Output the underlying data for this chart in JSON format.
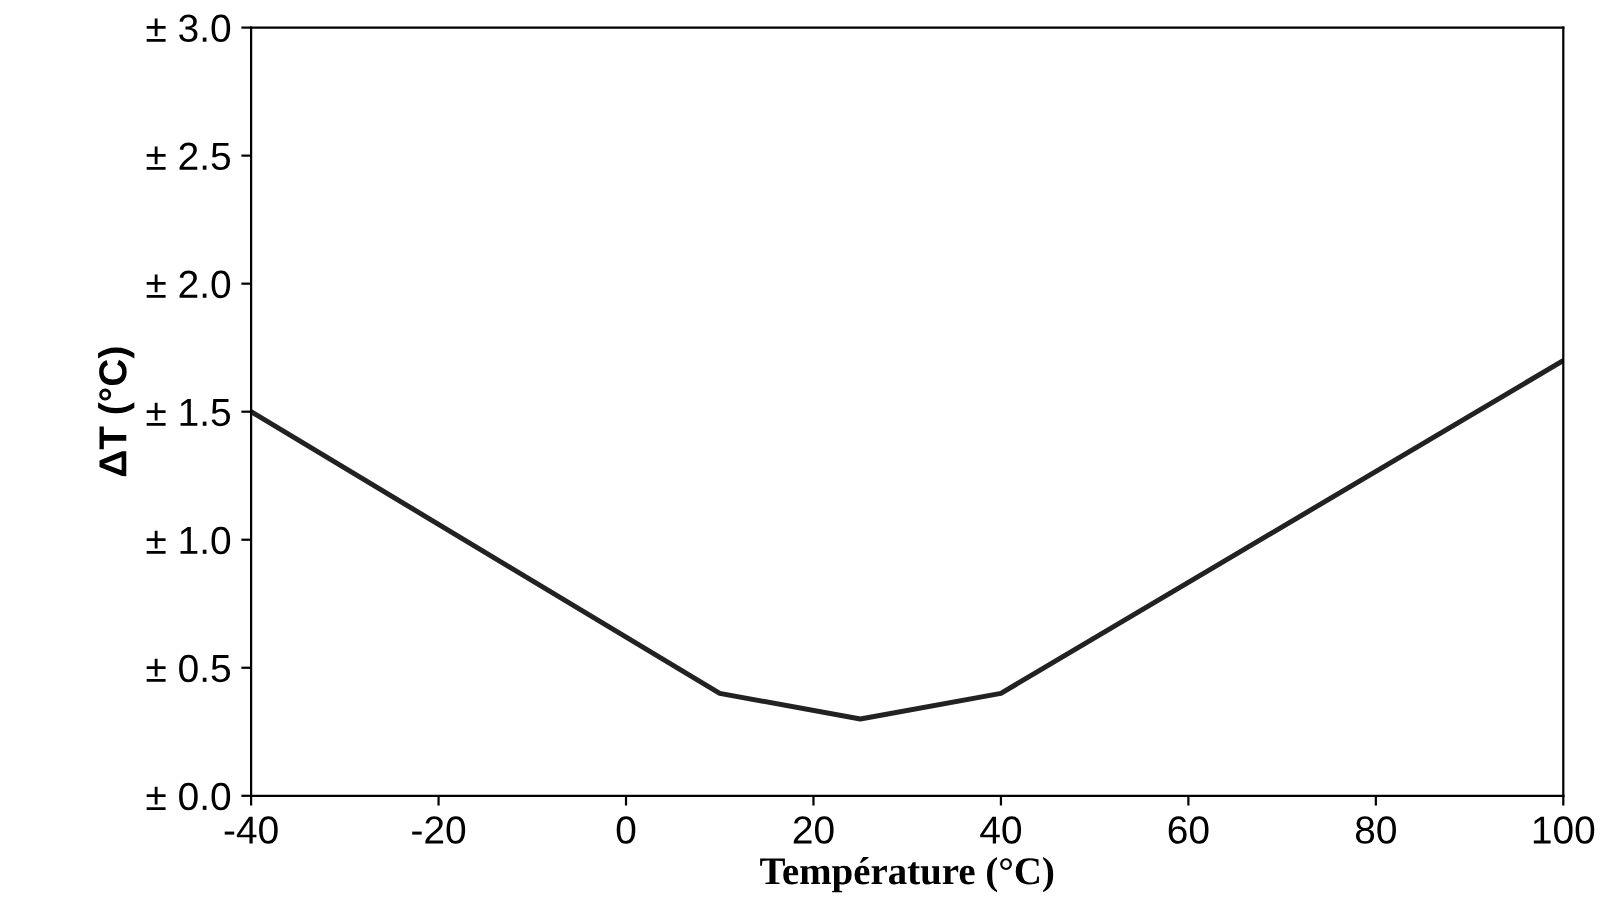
{
  "chart_data": {
    "type": "line",
    "xlabel": "Température (°C)",
    "ylabel": "ΔT (°C)",
    "x": [
      -40,
      10,
      25,
      40,
      100
    ],
    "series": [
      {
        "color": "#222222",
        "values": [
          1.5,
          0.4,
          0.3,
          0.4,
          1.7
        ]
      }
    ],
    "xlim": [
      -40,
      100
    ],
    "xticks": [
      -40,
      -20,
      0,
      20,
      40,
      60,
      80,
      100
    ],
    "ylim": [
      0,
      3.0
    ],
    "yticks": [
      {
        "value": 0,
        "label": "± 0.0"
      },
      {
        "value": 0.5,
        "label": "± 0.5"
      },
      {
        "value": 1.0,
        "label": "± 1.0"
      },
      {
        "value": 1.5,
        "label": "± 1.5"
      },
      {
        "value": 2.0,
        "label": "± 2.0"
      },
      {
        "value": 2.5,
        "label": "± 2.5"
      },
      {
        "value": 3.0,
        "label": "± 3.0"
      }
    ],
    "grid": false,
    "legend": false,
    "marker": "none",
    "line_style": "solid"
  }
}
